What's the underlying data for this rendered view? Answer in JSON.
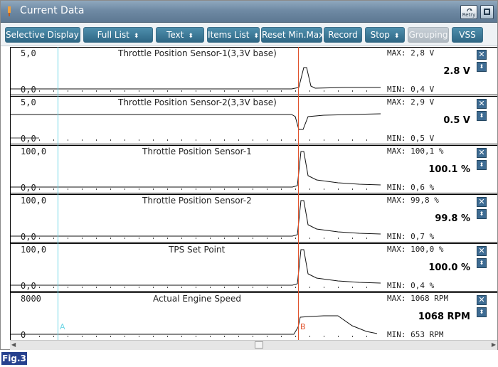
{
  "window": {
    "title": "Current Data",
    "retry_label": "Retry"
  },
  "toolbar": {
    "buttons": [
      {
        "label": "Selective Display",
        "dropdown": true,
        "enabled": true
      },
      {
        "label": "Full List",
        "dropdown": true,
        "enabled": true
      },
      {
        "label": "Text",
        "dropdown": true,
        "enabled": true
      },
      {
        "label": "Items List",
        "dropdown": true,
        "enabled": true
      },
      {
        "label": "Reset Min.Max",
        "dropdown": false,
        "enabled": true
      },
      {
        "label": "Record",
        "dropdown": false,
        "enabled": true
      },
      {
        "label": "Stop",
        "dropdown": true,
        "enabled": true
      },
      {
        "label": "Grouping",
        "dropdown": false,
        "enabled": false
      },
      {
        "label": "VSS",
        "dropdown": false,
        "enabled": true
      }
    ]
  },
  "cursors": {
    "a_label": "A",
    "b_label": "B",
    "a_color": "#6fd6e6",
    "b_color": "#e0522c"
  },
  "rows": [
    {
      "name": "Throttle Position Sensor-1(3,3V base)",
      "ymax": "5,0",
      "ymin": "0,0",
      "max": "MAX:  2,8 V",
      "min": "MIN:  0,4 V",
      "value": "2.8 V",
      "shape": "spike_up"
    },
    {
      "name": "Throttle Position Sensor-2(3,3V base)",
      "ymax": "5,0",
      "ymin": "0,0",
      "max": "MAX:  2,9 V",
      "min": "MIN:  0,5 V",
      "value": "0.5 V",
      "shape": "dip"
    },
    {
      "name": "Throttle Position Sensor-1",
      "ymax": "100,0",
      "ymin": "0,0",
      "max": "MAX: 100,1 %",
      "min": "MIN:  0,6 %",
      "value": "100.1 %",
      "shape": "peak_decay"
    },
    {
      "name": "Throttle Position Sensor-2",
      "ymax": "100,0",
      "ymin": "0,0",
      "max": "MAX:  99,8 %",
      "min": "MIN:  0,7 %",
      "value": "99.8 %",
      "shape": "peak_decay"
    },
    {
      "name": "TPS Set Point",
      "ymax": "100,0",
      "ymin": "0,0",
      "max": "MAX: 100,0 %",
      "min": "MIN:  0,4 %",
      "value": "100.0 %",
      "shape": "peak_decay"
    },
    {
      "name": "Actual Engine Speed",
      "ymax": "8000",
      "ymin": "0",
      "max": "MAX:  1068 RPM",
      "min": "MIN:  653 RPM",
      "value": "1068 RPM",
      "shape": "plateau"
    }
  ],
  "figure_label": "Fig.3"
}
